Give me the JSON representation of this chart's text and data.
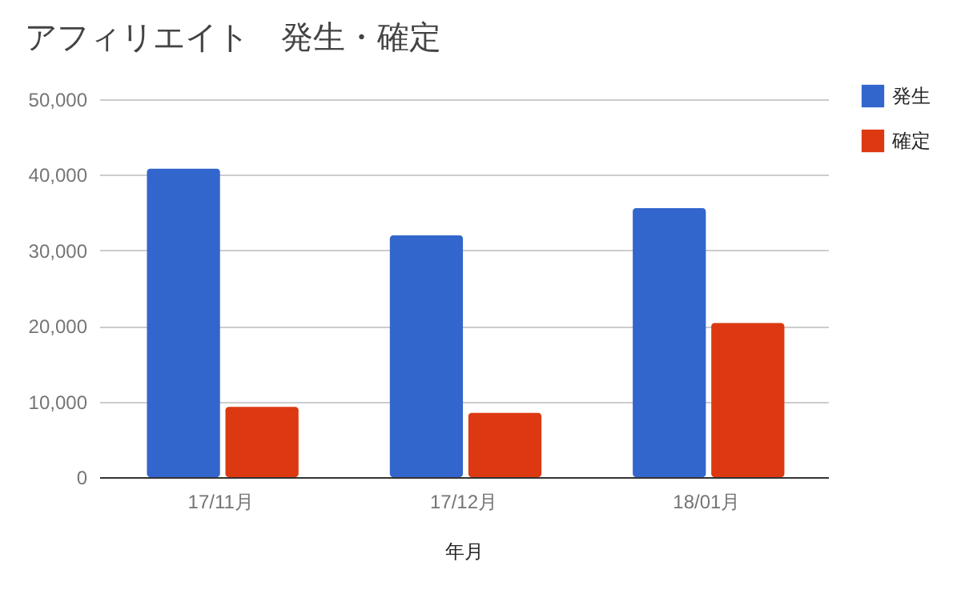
{
  "chart_data": {
    "type": "bar",
    "title": "アフィリエイト　発生・確定",
    "xlabel": "年月",
    "categories": [
      "17/11月",
      "17/12月",
      "18/01月"
    ],
    "series": [
      {
        "name": "発生",
        "color": "#3366cc",
        "values": [
          40800,
          32000,
          35600
        ]
      },
      {
        "name": "確定",
        "color": "#dc3912",
        "values": [
          9300,
          8500,
          20400
        ]
      }
    ],
    "ylim": [
      0,
      50000
    ],
    "yticks": [
      {
        "value": 0,
        "label": "0"
      },
      {
        "value": 10000,
        "label": "10,000"
      },
      {
        "value": 20000,
        "label": "20,000"
      },
      {
        "value": 30000,
        "label": "30,000"
      },
      {
        "value": 40000,
        "label": "40,000"
      },
      {
        "value": 50000,
        "label": "50,000"
      }
    ],
    "grid": "y",
    "legend": "top right"
  }
}
